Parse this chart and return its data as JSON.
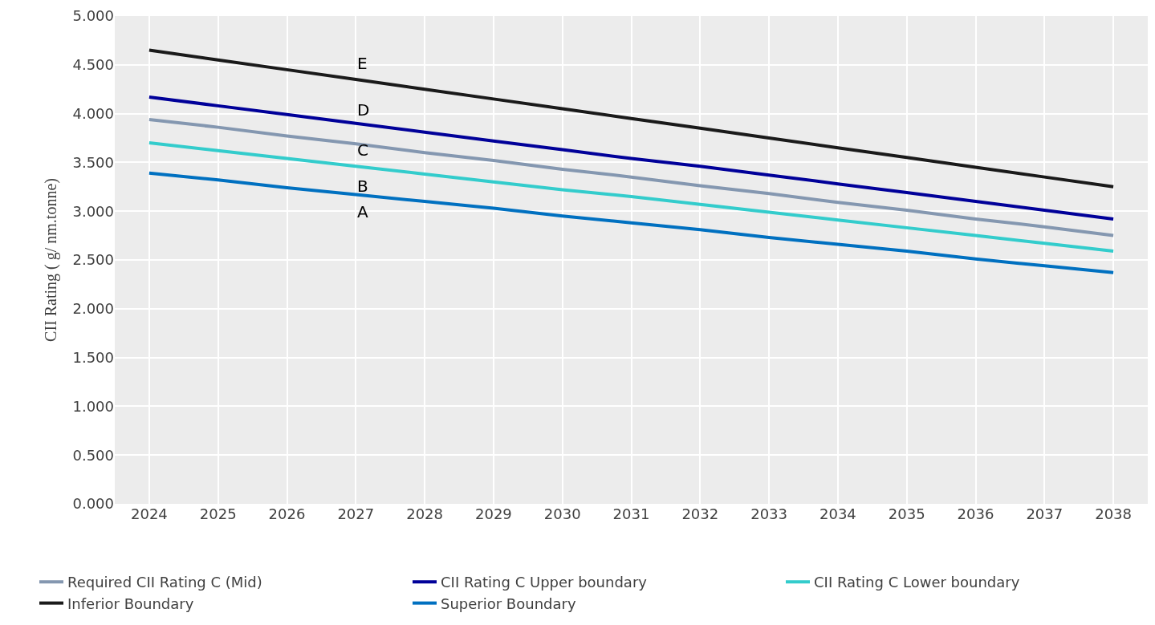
{
  "chart_data": {
    "type": "line",
    "ylabel": "CII Rating ( g/ nm.tonne)",
    "categories": [
      "2024",
      "2025",
      "2026",
      "2027",
      "2028",
      "2029",
      "2030",
      "2031",
      "2032",
      "2033",
      "2034",
      "2035",
      "2036",
      "2037",
      "2038"
    ],
    "series": [
      {
        "name": "Required CII Rating C (Mid)",
        "color": "#8497b0",
        "values": [
          3.94,
          3.86,
          3.77,
          3.69,
          3.6,
          3.52,
          3.43,
          3.35,
          3.26,
          3.18,
          3.09,
          3.01,
          2.92,
          2.84,
          2.75
        ]
      },
      {
        "name": "CII Rating C Upper boundary",
        "color": "#000099",
        "values": [
          4.17,
          4.08,
          3.99,
          3.9,
          3.81,
          3.72,
          3.63,
          3.54,
          3.46,
          3.37,
          3.28,
          3.19,
          3.1,
          3.01,
          2.92
        ]
      },
      {
        "name": "CII Rating C Lower boundary",
        "color": "#33cccc",
        "values": [
          3.7,
          3.62,
          3.54,
          3.46,
          3.38,
          3.3,
          3.22,
          3.15,
          3.07,
          2.99,
          2.91,
          2.83,
          2.75,
          2.67,
          2.59
        ]
      },
      {
        "name": "Inferior Boundary",
        "color": "#1a1a1a",
        "values": [
          4.65,
          4.55,
          4.45,
          4.35,
          4.25,
          4.15,
          4.05,
          3.95,
          3.85,
          3.75,
          3.65,
          3.55,
          3.45,
          3.35,
          3.25
        ]
      },
      {
        "name": "Superior Boundary",
        "color": "#0070c0",
        "values": [
          3.39,
          3.32,
          3.24,
          3.17,
          3.1,
          3.03,
          2.95,
          2.88,
          2.81,
          2.73,
          2.66,
          2.59,
          2.51,
          2.44,
          2.37
        ]
      }
    ],
    "annotations": [
      "E",
      "D",
      "C",
      "B",
      "A"
    ],
    "ylim": [
      0,
      5
    ],
    "yticks": [
      {
        "value": 0,
        "label": "0.000"
      },
      {
        "value": 0.5,
        "label": "0.500"
      },
      {
        "value": 1,
        "label": "1.000"
      },
      {
        "value": 1.5,
        "label": "1.500"
      },
      {
        "value": 2,
        "label": "2.000"
      },
      {
        "value": 2.5,
        "label": "2.500"
      },
      {
        "value": 3,
        "label": "3.000"
      },
      {
        "value": 3.5,
        "label": "3.500"
      },
      {
        "value": 4,
        "label": "4.000"
      },
      {
        "value": 4.5,
        "label": "4.500"
      },
      {
        "value": 5,
        "label": "5.000"
      }
    ],
    "grid": true,
    "legend": "bottom",
    "marker": "none",
    "line_style": "solid"
  }
}
